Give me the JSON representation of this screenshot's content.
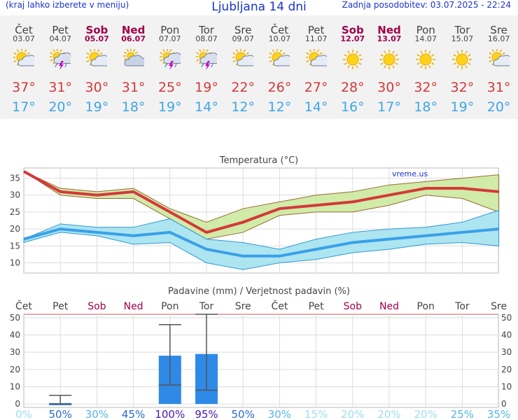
{
  "header": {
    "left_note": "(kraj lahko izberete v meniju)",
    "title": "Ljubljana 14 dni",
    "updated": "Zadnja posodobitev: 03.07.2025 - 22:24"
  },
  "days": [
    {
      "name": "Čet",
      "date": "03.07",
      "weekend": false,
      "icon": "sun-cloud-icon",
      "tmax": "37°",
      "tmin": "17°"
    },
    {
      "name": "Pet",
      "date": "04.07",
      "weekend": false,
      "icon": "thunderstorm-icon",
      "tmax": "31°",
      "tmin": "20°"
    },
    {
      "name": "Sob",
      "date": "05.07",
      "weekend": true,
      "icon": "sun-cloud-icon",
      "tmax": "30°",
      "tmin": "19°"
    },
    {
      "name": "Ned",
      "date": "06.07",
      "weekend": true,
      "icon": "cloud-icon",
      "tmax": "31°",
      "tmin": "18°"
    },
    {
      "name": "Pon",
      "date": "07.07",
      "weekend": false,
      "icon": "thunderstorm-icon",
      "tmax": "25°",
      "tmin": "19°"
    },
    {
      "name": "Tor",
      "date": "08.07",
      "weekend": false,
      "icon": "thunderstorm-icon",
      "tmax": "19°",
      "tmin": "14°"
    },
    {
      "name": "Sre",
      "date": "09.07",
      "weekend": false,
      "icon": "sun-cloud-icon",
      "tmax": "22°",
      "tmin": "12°"
    },
    {
      "name": "Čet",
      "date": "10.07",
      "weekend": false,
      "icon": "sun-cloud-icon",
      "tmax": "26°",
      "tmin": "12°"
    },
    {
      "name": "Pet",
      "date": "11.07",
      "weekend": false,
      "icon": "sun-cloud-icon",
      "tmax": "27°",
      "tmin": "14°"
    },
    {
      "name": "Sob",
      "date": "12.07",
      "weekend": true,
      "icon": "sun-icon",
      "tmax": "28°",
      "tmin": "16°"
    },
    {
      "name": "Ned",
      "date": "13.07",
      "weekend": true,
      "icon": "sun-icon",
      "tmax": "30°",
      "tmin": "17°"
    },
    {
      "name": "Pon",
      "date": "14.07",
      "weekend": false,
      "icon": "sun-icon",
      "tmax": "32°",
      "tmin": "18°"
    },
    {
      "name": "Tor",
      "date": "15.07",
      "weekend": false,
      "icon": "sun-icon",
      "tmax": "32°",
      "tmin": "19°"
    },
    {
      "name": "Sre",
      "date": "16.07",
      "weekend": false,
      "icon": "sun-cloud-icon",
      "tmax": "31°",
      "tmin": "20°"
    }
  ],
  "colors": {
    "weekend": "#a0004a",
    "tmax": "#d4393b",
    "tmin": "#3ea6e6",
    "band_max": "#c9e89a",
    "band_min": "#9fe0ee",
    "bar": "#2e8ae6"
  },
  "chart_data": [
    {
      "type": "line",
      "title": "Temperatura (°C)",
      "watermark": "vreme.us",
      "x": [
        "Čet",
        "Pet",
        "Sob",
        "Ned",
        "Pon",
        "Tor",
        "Sre",
        "Čet",
        "Pet",
        "Sob",
        "Ned",
        "Pon",
        "Tor",
        "Sre"
      ],
      "yticks": [
        10,
        15,
        20,
        25,
        30,
        35
      ],
      "ylim": [
        7,
        38
      ],
      "series": [
        {
          "name": "max",
          "values": [
            37,
            31,
            30,
            31,
            25,
            19,
            22,
            26,
            27,
            28,
            30,
            32,
            32,
            31
          ],
          "upper": [
            37,
            32,
            31,
            32,
            26,
            22,
            26,
            28,
            30,
            31,
            33,
            34,
            35,
            36
          ],
          "lower": [
            37,
            30,
            29,
            29,
            23,
            17,
            19,
            24,
            25,
            25,
            27,
            30,
            29,
            25
          ]
        },
        {
          "name": "min",
          "values": [
            17,
            20,
            19,
            18,
            19,
            14,
            12,
            12,
            14,
            16,
            17,
            18,
            19,
            20
          ],
          "upper": [
            17,
            21.5,
            20.5,
            20.5,
            23,
            17,
            16,
            14,
            17,
            19,
            20,
            20.5,
            22,
            25.5
          ],
          "lower": [
            16,
            19,
            18,
            15.5,
            16,
            10,
            8,
            10,
            11,
            13,
            14,
            15.5,
            16,
            15
          ]
        }
      ]
    },
    {
      "type": "bar",
      "title": "Padavine (mm) / Verjetnost padavin (%)",
      "categories": [
        "Čet",
        "Pet",
        "Sob",
        "Ned",
        "Pon",
        "Tor",
        "Sre",
        "Čet",
        "Pet",
        "Sob",
        "Ned",
        "Pon",
        "Tor",
        "Sre"
      ],
      "values": [
        0,
        0.5,
        0,
        0,
        28,
        29,
        0,
        0,
        0,
        0,
        0,
        0,
        0,
        0
      ],
      "error_low": [
        null,
        0,
        null,
        null,
        11,
        8,
        null,
        null,
        null,
        null,
        null,
        null,
        null,
        null
      ],
      "error_high": [
        null,
        5,
        null,
        null,
        46,
        52,
        null,
        null,
        null,
        null,
        null,
        null,
        null,
        null
      ],
      "probabilities": [
        "0%",
        "50%",
        "30%",
        "45%",
        "100%",
        "95%",
        "50%",
        "30%",
        "15%",
        "20%",
        "20%",
        "20%",
        "25%",
        "35%"
      ],
      "prob_colors": [
        "#9fdcf2",
        "#2a6bc9",
        "#56b5e0",
        "#2a6bc9",
        "#4a16b0",
        "#4a16b0",
        "#2a6bc9",
        "#56b5e0",
        "#9fdcf2",
        "#9fdcf2",
        "#9fdcf2",
        "#9fdcf2",
        "#56b5e0",
        "#56b5e0"
      ],
      "yticks": [
        0,
        10,
        20,
        30,
        40,
        50
      ],
      "ylim": [
        -2,
        52
      ]
    }
  ]
}
